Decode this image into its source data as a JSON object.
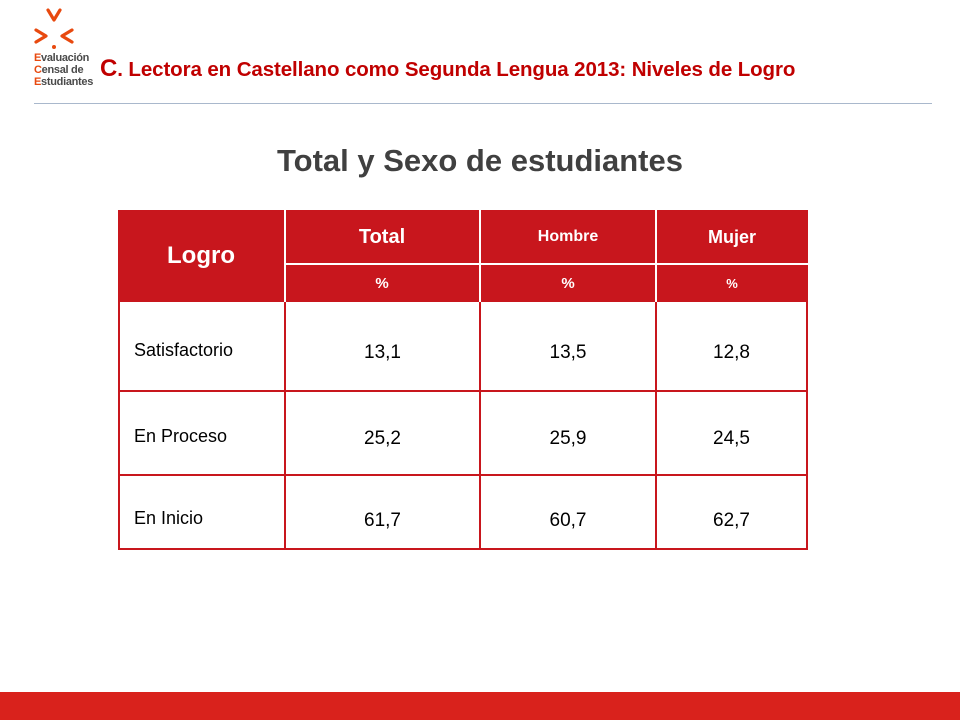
{
  "logo": {
    "lines": [
      {
        "initial": "E",
        "rest": "valuación"
      },
      {
        "initial": "C",
        "rest": "ensal de"
      },
      {
        "initial": "E",
        "rest": "studiantes"
      }
    ]
  },
  "header": {
    "title_initial": "C",
    "title_rest": ". Lectora en Castellano como Segunda Lengua 2013: Niveles de Logro"
  },
  "subtitle": "Total y Sexo de estudiantes",
  "table": {
    "logro_header": "Logro",
    "columns": [
      {
        "label": "Total",
        "unit": "%"
      },
      {
        "label": "Hombre",
        "unit": "%"
      },
      {
        "label": "Mujer",
        "unit": "%"
      }
    ],
    "rows": [
      {
        "label": "Satisfactorio",
        "values": [
          "13,1",
          "13,5",
          "12,8"
        ]
      },
      {
        "label": "En Proceso",
        "values": [
          "25,2",
          "25,9",
          "24,5"
        ]
      },
      {
        "label": "En Inicio",
        "values": [
          "61,7",
          "60,7",
          "62,7"
        ]
      }
    ]
  },
  "colors": {
    "accent_red": "#c8161d",
    "header_red": "#c00000",
    "logo_orange": "#e8490f"
  }
}
